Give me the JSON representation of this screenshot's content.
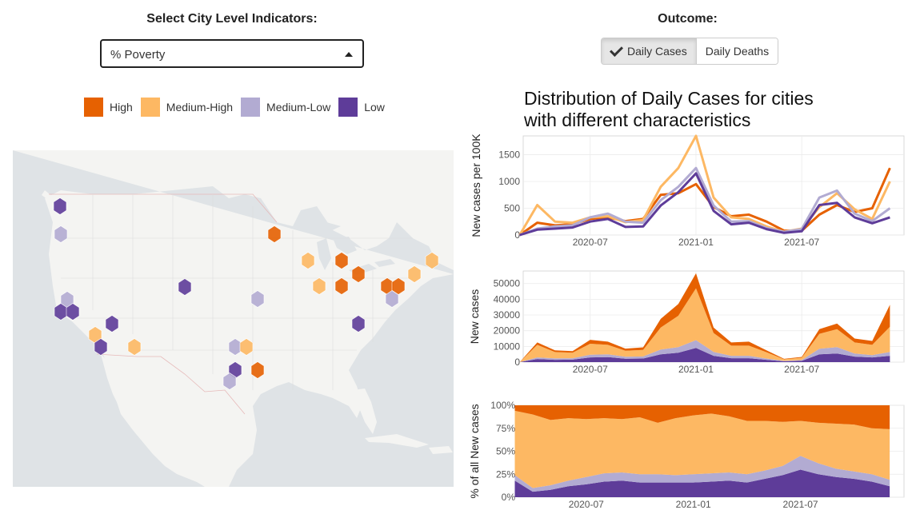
{
  "controls": {
    "indicator_label": "Select City Level Indicators:",
    "indicator_value": "% Poverty",
    "outcome_label": "Outcome:",
    "outcome_options": [
      {
        "label": "Daily Cases",
        "active": true
      },
      {
        "label": "Daily Deaths",
        "active": false
      }
    ]
  },
  "legend": [
    {
      "label": "High",
      "color": "#e66101"
    },
    {
      "label": "Medium-High",
      "color": "#fdb863"
    },
    {
      "label": "Medium-Low",
      "color": "#b2abd2"
    },
    {
      "label": "Low",
      "color": "#5e3c99"
    }
  ],
  "map": {
    "cities": [
      {
        "group": "Low",
        "pos": [
          75,
          258
        ]
      },
      {
        "group": "Medium-Low",
        "pos": [
          76,
          293
        ]
      },
      {
        "group": "High",
        "pos": [
          343,
          293
        ]
      },
      {
        "group": "Medium-High",
        "pos": [
          385,
          326
        ]
      },
      {
        "group": "High",
        "pos": [
          427,
          326
        ]
      },
      {
        "group": "Medium-High",
        "pos": [
          540,
          326
        ]
      },
      {
        "group": "High",
        "pos": [
          448,
          343
        ]
      },
      {
        "group": "Medium-High",
        "pos": [
          518,
          343
        ]
      },
      {
        "group": "Low",
        "pos": [
          231,
          359
        ]
      },
      {
        "group": "Medium-High",
        "pos": [
          399,
          358
        ]
      },
      {
        "group": "High",
        "pos": [
          427,
          358
        ]
      },
      {
        "group": "High",
        "pos": [
          484,
          358
        ]
      },
      {
        "group": "High",
        "pos": [
          498,
          358
        ]
      },
      {
        "group": "Medium-Low",
        "pos": [
          84,
          375
        ]
      },
      {
        "group": "Medium-Low",
        "pos": [
          322,
          374
        ]
      },
      {
        "group": "Medium-Low",
        "pos": [
          490,
          374
        ]
      },
      {
        "group": "Low",
        "pos": [
          76,
          390
        ]
      },
      {
        "group": "Low",
        "pos": [
          91,
          390
        ]
      },
      {
        "group": "Low",
        "pos": [
          140,
          405
        ]
      },
      {
        "group": "Low",
        "pos": [
          448,
          405
        ]
      },
      {
        "group": "Medium-High",
        "pos": [
          119,
          419
        ]
      },
      {
        "group": "Low",
        "pos": [
          126,
          434
        ]
      },
      {
        "group": "Medium-High",
        "pos": [
          168,
          434
        ]
      },
      {
        "group": "Medium-Low",
        "pos": [
          294,
          434
        ]
      },
      {
        "group": "Medium-High",
        "pos": [
          308,
          434
        ]
      },
      {
        "group": "Low",
        "pos": [
          294,
          463
        ]
      },
      {
        "group": "High",
        "pos": [
          322,
          463
        ]
      },
      {
        "group": "Medium-Low",
        "pos": [
          287,
          477
        ]
      }
    ]
  },
  "chart_title_line1": "Distribution of Daily Cases for cities",
  "chart_title_line2": "with different characteristics",
  "chart_data": [
    {
      "type": "line",
      "ylabel": "New cases per 100K",
      "xlabel": "",
      "x_ticks": [
        "2020-07",
        "2021-01",
        "2021-07"
      ],
      "y_ticks": [
        0,
        500,
        1000,
        1500
      ],
      "ylim": [
        0,
        1850
      ],
      "grid": true,
      "x": [
        "2020-03",
        "2020-04",
        "2020-05",
        "2020-06",
        "2020-07",
        "2020-08",
        "2020-09",
        "2020-10",
        "2020-11",
        "2020-12",
        "2021-01",
        "2021-02",
        "2021-03",
        "2021-04",
        "2021-05",
        "2021-06",
        "2021-07",
        "2021-08",
        "2021-09",
        "2021-10",
        "2021-11",
        "2021-12"
      ],
      "series": [
        {
          "name": "High",
          "values": [
            0,
            230,
            180,
            200,
            300,
            330,
            260,
            300,
            750,
            780,
            950,
            520,
            350,
            380,
            250,
            80,
            80,
            380,
            560,
            430,
            500,
            1250
          ]
        },
        {
          "name": "Medium-High",
          "values": [
            0,
            560,
            250,
            230,
            330,
            350,
            240,
            280,
            900,
            1250,
            1850,
            700,
            330,
            300,
            160,
            60,
            120,
            520,
            780,
            480,
            300,
            1000
          ]
        },
        {
          "name": "Medium-Low",
          "values": [
            0,
            120,
            160,
            180,
            330,
            400,
            250,
            230,
            650,
            900,
            1250,
            550,
            250,
            260,
            130,
            60,
            110,
            700,
            830,
            400,
            260,
            500
          ]
        },
        {
          "name": "Low",
          "values": [
            0,
            100,
            120,
            140,
            250,
            300,
            150,
            160,
            550,
            800,
            1150,
            450,
            200,
            230,
            110,
            40,
            70,
            560,
            600,
            330,
            220,
            330
          ]
        }
      ]
    },
    {
      "type": "area",
      "ylabel": "New cases",
      "xlabel": "",
      "x_ticks": [
        "2020-07",
        "2021-01",
        "2021-07"
      ],
      "y_ticks": [
        0,
        10000,
        20000,
        30000,
        40000,
        50000
      ],
      "ylim": [
        0,
        58000
      ],
      "grid": true,
      "x": [
        "2020-03",
        "2020-04",
        "2020-05",
        "2020-06",
        "2020-07",
        "2020-08",
        "2020-09",
        "2020-10",
        "2020-11",
        "2020-12",
        "2021-01",
        "2021-02",
        "2021-03",
        "2021-04",
        "2021-05",
        "2021-06",
        "2021-07",
        "2021-08",
        "2021-09",
        "2021-10",
        "2021-11",
        "2021-12"
      ],
      "series": [
        {
          "name": "Low",
          "values": [
            0,
            2000,
            1500,
            1600,
            3000,
            3200,
            2200,
            2300,
            5000,
            6000,
            9000,
            4000,
            2500,
            2500,
            1500,
            500,
            800,
            5000,
            5500,
            3500,
            3000,
            4000
          ]
        },
        {
          "name": "Medium-Low",
          "values": [
            0,
            1000,
            900,
            900,
            1700,
            1800,
            1200,
            1300,
            3000,
            3500,
            5000,
            2500,
            1500,
            1500,
            800,
            300,
            500,
            3500,
            4000,
            2000,
            1500,
            2500
          ]
        },
        {
          "name": "Medium-High",
          "values": [
            0,
            8000,
            4000,
            3500,
            7000,
            6000,
            3800,
            4200,
            14000,
            20000,
            33000,
            12000,
            6500,
            6500,
            4000,
            1000,
            1500,
            9500,
            11500,
            7000,
            6500,
            16000
          ]
        },
        {
          "name": "High",
          "values": [
            0,
            1500,
            1100,
            1000,
            2500,
            2000,
            1400,
            1600,
            5500,
            7500,
            9500,
            3500,
            2000,
            2500,
            1200,
            300,
            500,
            3000,
            3500,
            2500,
            2500,
            14000
          ]
        }
      ]
    },
    {
      "type": "area",
      "ylabel": "% of all New cases",
      "xlabel": "",
      "x_ticks": [
        "2020-07",
        "2021-01",
        "2021-07"
      ],
      "y_ticks": [
        "0%",
        "25%",
        "50%",
        "75%",
        "100%"
      ],
      "ylim": [
        0,
        100
      ],
      "grid": true,
      "x": [
        "2020-03",
        "2020-04",
        "2020-05",
        "2020-06",
        "2020-07",
        "2020-08",
        "2020-09",
        "2020-10",
        "2020-11",
        "2020-12",
        "2021-01",
        "2021-02",
        "2021-03",
        "2021-04",
        "2021-05",
        "2021-06",
        "2021-07",
        "2021-08",
        "2021-09",
        "2021-10",
        "2021-11",
        "2021-12"
      ],
      "series": [
        {
          "name": "Low",
          "values": [
            18,
            6,
            8,
            12,
            14,
            17,
            18,
            16,
            16,
            16,
            16,
            17,
            18,
            16,
            20,
            24,
            30,
            25,
            22,
            20,
            17,
            12
          ]
        },
        {
          "name": "Medium-Low",
          "values": [
            6,
            4,
            5,
            6,
            8,
            9,
            9,
            9,
            9,
            8,
            9,
            9,
            9,
            9,
            9,
            10,
            15,
            12,
            9,
            8,
            8,
            7
          ]
        },
        {
          "name": "Medium-High",
          "values": [
            70,
            80,
            71,
            68,
            63,
            60,
            58,
            62,
            56,
            62,
            64,
            65,
            61,
            58,
            54,
            48,
            38,
            44,
            49,
            51,
            50,
            55
          ]
        },
        {
          "name": "High",
          "values": [
            6,
            10,
            16,
            14,
            15,
            14,
            15,
            13,
            19,
            14,
            11,
            9,
            12,
            17,
            17,
            18,
            17,
            19,
            20,
            21,
            25,
            26
          ]
        }
      ]
    }
  ]
}
